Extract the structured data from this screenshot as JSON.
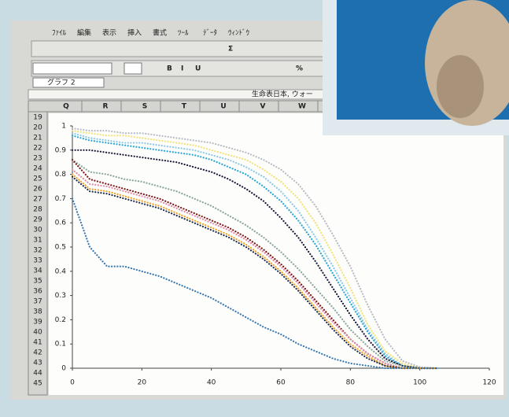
{
  "menu": [
    "ﾌｧｲﾙ",
    "編集",
    "表示",
    "挿入",
    "書式",
    "ﾂｰﾙ",
    "ﾃﾞｰﾀ",
    "ｳｨﾝﾄﾞｳ"
  ],
  "toolbar_labels": [
    "Σ",
    "B",
    "I",
    "U",
    "%"
  ],
  "name_box": "グラフ 2",
  "window_title": "生命表日本, ウォー",
  "columns": [
    "Q",
    "R",
    "S",
    "T",
    "U",
    "V",
    "W"
  ],
  "rows": [
    "19",
    "20",
    "21",
    "22",
    "23",
    "24",
    "25",
    "26",
    "27",
    "28",
    "29",
    "30",
    "31",
    "32",
    "33",
    "34",
    "35",
    "36",
    "37",
    "38",
    "39",
    "40",
    "41",
    "42",
    "43",
    "44",
    "45"
  ],
  "chart_data": {
    "type": "line",
    "x": [
      0,
      5,
      10,
      15,
      20,
      25,
      30,
      35,
      40,
      45,
      50,
      55,
      60,
      65,
      70,
      75,
      80,
      85,
      90,
      95,
      100,
      105
    ],
    "xlim": [
      0,
      120
    ],
    "ylim": [
      0,
      1
    ],
    "xticks": [
      0,
      20,
      40,
      60,
      80,
      100,
      120
    ],
    "yticks": [
      0,
      0.1,
      0.2,
      0.3,
      0.4,
      0.5,
      0.6,
      0.7,
      0.8,
      0.9,
      1
    ],
    "series": [
      {
        "color": "#b8bcc4",
        "values": [
          0.99,
          0.98,
          0.98,
          0.97,
          0.97,
          0.96,
          0.95,
          0.94,
          0.93,
          0.91,
          0.89,
          0.86,
          0.82,
          0.76,
          0.67,
          0.55,
          0.42,
          0.26,
          0.12,
          0.03,
          0.005,
          0
        ]
      },
      {
        "color": "#f2e27a",
        "values": [
          0.98,
          0.97,
          0.96,
          0.96,
          0.95,
          0.94,
          0.93,
          0.92,
          0.9,
          0.88,
          0.86,
          0.82,
          0.77,
          0.7,
          0.6,
          0.47,
          0.33,
          0.18,
          0.07,
          0.02,
          0,
          0
        ]
      },
      {
        "color": "#8ec8e8",
        "values": [
          0.97,
          0.95,
          0.94,
          0.93,
          0.93,
          0.92,
          0.91,
          0.9,
          0.88,
          0.86,
          0.83,
          0.79,
          0.73,
          0.65,
          0.54,
          0.42,
          0.29,
          0.16,
          0.06,
          0.01,
          0,
          0
        ]
      },
      {
        "color": "#2aa6d8",
        "values": [
          0.96,
          0.94,
          0.93,
          0.92,
          0.91,
          0.9,
          0.89,
          0.88,
          0.86,
          0.83,
          0.8,
          0.75,
          0.69,
          0.61,
          0.51,
          0.39,
          0.27,
          0.15,
          0.05,
          0.01,
          0,
          0
        ]
      },
      {
        "color": "#1a1a3a",
        "values": [
          0.9,
          0.9,
          0.89,
          0.88,
          0.87,
          0.86,
          0.85,
          0.83,
          0.81,
          0.78,
          0.74,
          0.69,
          0.62,
          0.54,
          0.44,
          0.33,
          0.22,
          0.12,
          0.04,
          0.01,
          0,
          0
        ]
      },
      {
        "color": "#8aa79a",
        "values": [
          0.86,
          0.81,
          0.8,
          0.78,
          0.77,
          0.75,
          0.73,
          0.7,
          0.67,
          0.63,
          0.59,
          0.54,
          0.48,
          0.41,
          0.33,
          0.25,
          0.16,
          0.09,
          0.03,
          0.01,
          0,
          0
        ]
      },
      {
        "color": "#7a1a1a",
        "values": [
          0.86,
          0.78,
          0.76,
          0.74,
          0.72,
          0.7,
          0.67,
          0.64,
          0.61,
          0.58,
          0.54,
          0.49,
          0.43,
          0.36,
          0.28,
          0.2,
          0.12,
          0.06,
          0.02,
          0,
          0,
          0
        ]
      },
      {
        "color": "#e08aa8",
        "values": [
          0.82,
          0.76,
          0.75,
          0.73,
          0.71,
          0.69,
          0.66,
          0.63,
          0.6,
          0.57,
          0.53,
          0.48,
          0.42,
          0.35,
          0.27,
          0.19,
          0.12,
          0.06,
          0.02,
          0,
          0,
          0
        ]
      },
      {
        "color": "#f0a020",
        "values": [
          0.8,
          0.74,
          0.73,
          0.71,
          0.69,
          0.67,
          0.64,
          0.61,
          0.58,
          0.55,
          0.51,
          0.46,
          0.4,
          0.33,
          0.25,
          0.17,
          0.1,
          0.05,
          0.01,
          0,
          0,
          0
        ]
      },
      {
        "color": "#203050",
        "values": [
          0.79,
          0.73,
          0.72,
          0.7,
          0.68,
          0.66,
          0.63,
          0.6,
          0.57,
          0.54,
          0.5,
          0.45,
          0.39,
          0.32,
          0.24,
          0.16,
          0.09,
          0.04,
          0.01,
          0,
          0,
          0
        ]
      },
      {
        "color": "#3a78b0",
        "values": [
          0.7,
          0.5,
          0.42,
          0.42,
          0.4,
          0.38,
          0.35,
          0.32,
          0.29,
          0.25,
          0.21,
          0.17,
          0.14,
          0.1,
          0.07,
          0.04,
          0.02,
          0.01,
          0,
          0,
          0,
          0
        ]
      }
    ]
  }
}
